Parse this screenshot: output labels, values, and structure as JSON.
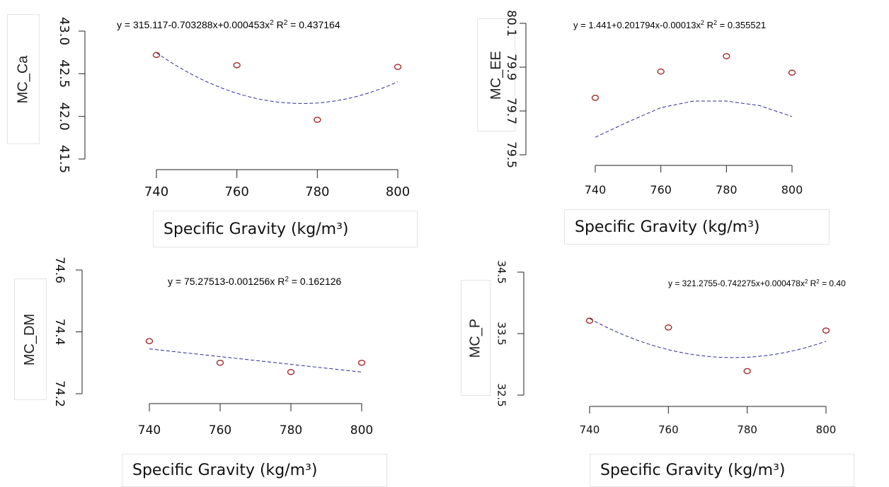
{
  "chart_data": [
    {
      "type": "scatter",
      "ylabel": "MC_Ca",
      "xlabel": "Specific Gravity (kg/m³)",
      "equation": "y = 315.117-0.703288x+0.000453x²  R² = 0.437164",
      "x_ticks": [
        740,
        760,
        780,
        800
      ],
      "y_ticks": [
        "41.5",
        "42.0",
        "42.5",
        "43.0"
      ],
      "x_range": [
        740,
        800
      ],
      "y_range": [
        41.5,
        43.0
      ],
      "points": [
        {
          "x": 740,
          "y": 42.72
        },
        {
          "x": 760,
          "y": 42.6
        },
        {
          "x": 780,
          "y": 41.96
        },
        {
          "x": 800,
          "y": 42.58
        }
      ],
      "fit": {
        "a": 315.117,
        "b": -0.703288,
        "c": 0.000453,
        "x0": 740,
        "x1": 800
      },
      "point_color": "#a52a2a",
      "fit_color": "#2a2a9a"
    },
    {
      "type": "scatter",
      "ylabel": "MC_EE",
      "xlabel": "Specific Gravity (kg/m³)",
      "equation": "y = 1.441+0.201794x-0.00013x²  R² = 0.355521",
      "x_ticks": [
        740,
        760,
        780,
        800
      ],
      "y_ticks": [
        "79.5",
        "79.7",
        "79.9",
        "80.1"
      ],
      "x_range": [
        740,
        800
      ],
      "y_range": [
        79.5,
        80.1
      ],
      "points": [
        {
          "x": 740,
          "y": 79.76
        },
        {
          "x": 760,
          "y": 79.88
        },
        {
          "x": 780,
          "y": 79.95
        },
        {
          "x": 800,
          "y": 79.875
        }
      ],
      "fit_samples": [
        {
          "x": 740,
          "y": 79.58
        },
        {
          "x": 750,
          "y": 79.65
        },
        {
          "x": 760,
          "y": 79.715
        },
        {
          "x": 770,
          "y": 79.745
        },
        {
          "x": 780,
          "y": 79.745
        },
        {
          "x": 790,
          "y": 79.725
        },
        {
          "x": 800,
          "y": 79.675
        }
      ],
      "point_color": "#a52a2a",
      "fit_color": "#2a2a9a"
    },
    {
      "type": "scatter",
      "ylabel": "MC_DM",
      "xlabel": "Specific Gravity (kg/m³)",
      "equation": "y = 75.27513-0.001256x  R² = 0.162126",
      "x_ticks": [
        740,
        760,
        780,
        800
      ],
      "y_ticks": [
        "74.2",
        "74.4",
        "74.6"
      ],
      "x_range": [
        740,
        800
      ],
      "y_range": [
        74.2,
        74.6
      ],
      "points": [
        {
          "x": 740,
          "y": 74.37
        },
        {
          "x": 760,
          "y": 74.3
        },
        {
          "x": 780,
          "y": 74.27
        },
        {
          "x": 800,
          "y": 74.3
        }
      ],
      "fit_samples": [
        {
          "x": 740,
          "y": 74.345
        },
        {
          "x": 800,
          "y": 74.27
        }
      ],
      "point_color": "#a52a2a",
      "fit_color": "#2a2a9a"
    },
    {
      "type": "scatter",
      "ylabel": "MC_P",
      "xlabel": "Specific Gravity (kg/m³)",
      "equation": "y = 321.2755-0.742275x+0.000478x²  R² = 0.40",
      "x_ticks": [
        740,
        760,
        780,
        800
      ],
      "y_ticks": [
        "32.5",
        "33.5",
        "34.5"
      ],
      "x_range": [
        740,
        800
      ],
      "y_range": [
        32.5,
        34.5
      ],
      "points": [
        {
          "x": 740,
          "y": 33.71
        },
        {
          "x": 760,
          "y": 33.6
        },
        {
          "x": 780,
          "y": 32.89
        },
        {
          "x": 800,
          "y": 33.55
        }
      ],
      "fit": {
        "a": 321.2755,
        "b": -0.742275,
        "c": 0.000478,
        "x0": 740,
        "x1": 800
      },
      "point_color": "#a52a2a",
      "fit_color": "#2a2a9a"
    }
  ]
}
